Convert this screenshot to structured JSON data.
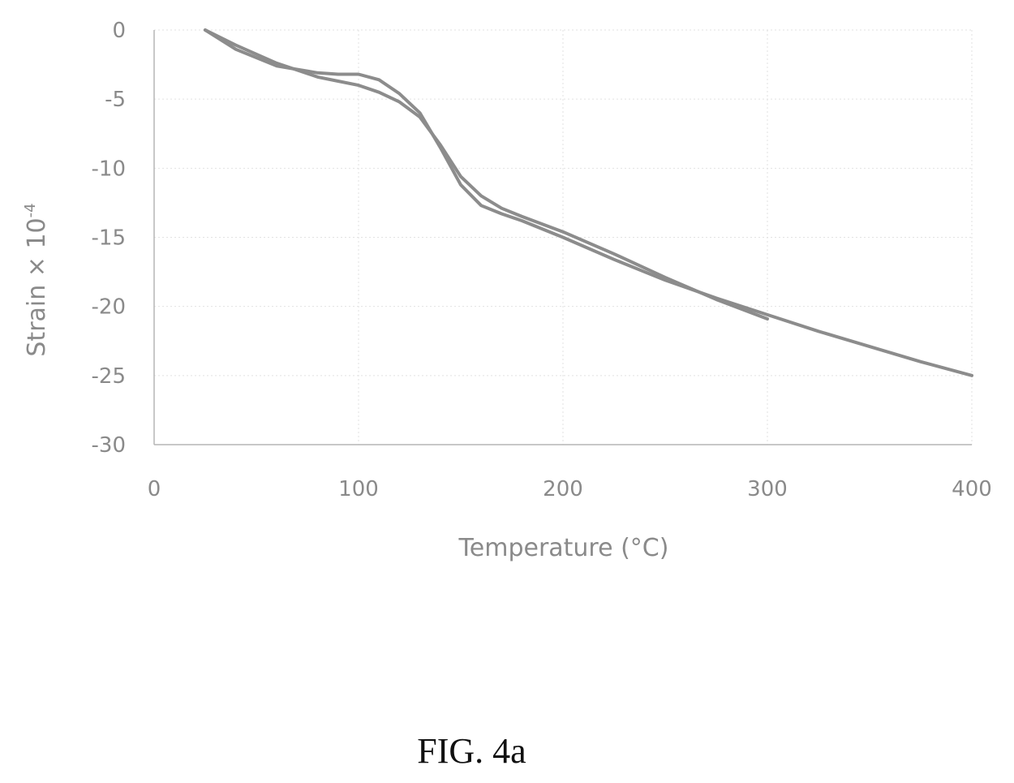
{
  "chart_data": {
    "type": "line",
    "xlabel": "Temperature (°C)",
    "ylabel": "Strain × 10",
    "ylabel_exponent": "-4",
    "xlim": [
      0,
      400
    ],
    "ylim": [
      -30,
      0
    ],
    "x_ticks": [
      0,
      100,
      200,
      300,
      400
    ],
    "y_ticks": [
      0,
      -5,
      -10,
      -15,
      -20,
      -25,
      -30
    ],
    "y_tick_labels": [
      "0",
      "-5",
      "-10",
      "-15",
      "-20",
      "-25",
      "-30"
    ],
    "grid": true,
    "line_color": "#8c8c8c",
    "series": [
      {
        "x": [
          25,
          40,
          60,
          80,
          90,
          100,
          110,
          120,
          130,
          140,
          150,
          160,
          170,
          180,
          200,
          225,
          250,
          275,
          300
        ],
        "y": [
          0,
          -1.1,
          -2.4,
          -3.4,
          -3.7,
          -4.0,
          -4.5,
          -5.2,
          -6.3,
          -8.3,
          -10.6,
          -12.0,
          -12.9,
          -13.5,
          -14.6,
          -16.2,
          -17.9,
          -19.5,
          -20.9
        ]
      },
      {
        "x": [
          25,
          40,
          60,
          80,
          90,
          100,
          110,
          120,
          130,
          140,
          150,
          160,
          170,
          180,
          200,
          225,
          250,
          275,
          300,
          325,
          350,
          375,
          400
        ],
        "y": [
          0,
          -1.4,
          -2.6,
          -3.1,
          -3.2,
          -3.2,
          -3.6,
          -4.6,
          -6.0,
          -8.5,
          -11.2,
          -12.7,
          -13.3,
          -13.8,
          -15.0,
          -16.6,
          -18.1,
          -19.4,
          -20.6,
          -21.8,
          -22.9,
          -24.0,
          -25.0
        ]
      }
    ]
  },
  "caption": "FIG. 4a"
}
